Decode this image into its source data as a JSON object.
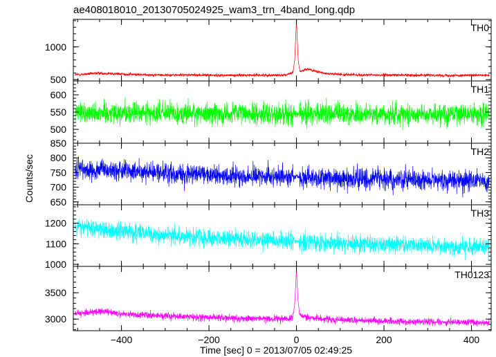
{
  "chart_data": {
    "type": "line",
    "title": "ae408018010_20130705024925_wam3_trn_4band_long.qdp",
    "xlabel": "Time [sec] 0 = 2013/07/05 02:49:25",
    "ylabel": "Counts/sec",
    "xlim": [
      -510,
      445
    ],
    "xticks": [
      -400,
      -200,
      0,
      200,
      400
    ],
    "xtick_labels": [
      "−400",
      "−200",
      "0",
      "200",
      "400"
    ],
    "grid": false,
    "legend": "none",
    "panels": [
      {
        "name": "TH0",
        "color": "#ff0000",
        "ylim": [
          480,
          1420
        ],
        "yticks": [
          500,
          1000
        ],
        "ytick_labels": [
          "500",
          "1000"
        ],
        "points": [
          [
            -505,
            575
          ],
          [
            -480,
            585
          ],
          [
            -450,
            600
          ],
          [
            -420,
            590
          ],
          [
            -400,
            585
          ],
          [
            -350,
            575
          ],
          [
            -300,
            570
          ],
          [
            -250,
            572
          ],
          [
            -200,
            568
          ],
          [
            -150,
            565
          ],
          [
            -100,
            570
          ],
          [
            -50,
            568
          ],
          [
            -20,
            575
          ],
          [
            -8,
            610
          ],
          [
            -4,
            800
          ],
          [
            -2,
            1100
          ],
          [
            0,
            1400
          ],
          [
            2,
            1100
          ],
          [
            4,
            800
          ],
          [
            8,
            620
          ],
          [
            20,
            650
          ],
          [
            30,
            660
          ],
          [
            45,
            620
          ],
          [
            80,
            585
          ],
          [
            150,
            570
          ],
          [
            250,
            570
          ],
          [
            350,
            565
          ],
          [
            440,
            565
          ]
        ],
        "noise": 15
      },
      {
        "name": "TH1",
        "color": "#00ff00",
        "ylim": [
          460,
          640
        ],
        "yticks": [
          500,
          550,
          600
        ],
        "ytick_labels": [
          "500",
          "550",
          "600"
        ],
        "points": [
          [
            -505,
            550
          ],
          [
            -400,
            548
          ],
          [
            -200,
            546
          ],
          [
            0,
            545
          ],
          [
            200,
            544
          ],
          [
            440,
            545
          ]
        ],
        "noise": 22
      },
      {
        "name": "TH2",
        "color": "#0000ff",
        "ylim": [
          640,
          850
        ],
        "yticks": [
          650,
          700,
          750,
          800,
          850
        ],
        "ytick_labels": [
          "650",
          "700",
          "750",
          "800",
          "850"
        ],
        "points": [
          [
            -505,
            760
          ],
          [
            -400,
            755
          ],
          [
            -300,
            748
          ],
          [
            -200,
            742
          ],
          [
            -100,
            738
          ],
          [
            0,
            735
          ],
          [
            100,
            730
          ],
          [
            200,
            728
          ],
          [
            300,
            725
          ],
          [
            440,
            722
          ]
        ],
        "noise": 24
      },
      {
        "name": "TH3",
        "color": "#00ffff",
        "ylim": [
          990,
          1290
        ],
        "yticks": [
          1000,
          1100,
          1200
        ],
        "ytick_labels": [
          "1000",
          "1100",
          "1200"
        ],
        "points": [
          [
            -505,
            1180
          ],
          [
            -400,
            1160
          ],
          [
            -300,
            1140
          ],
          [
            -200,
            1130
          ],
          [
            -100,
            1120
          ],
          [
            0,
            1110
          ],
          [
            100,
            1100
          ],
          [
            200,
            1095
          ],
          [
            300,
            1090
          ],
          [
            440,
            1085
          ]
        ],
        "noise": 30
      },
      {
        "name": "TH0123",
        "color": "#ff00ff",
        "ylim": [
          2780,
          4000
        ],
        "yticks": [
          3000,
          3500
        ],
        "ytick_labels": [
          "3000",
          "3500"
        ],
        "points": [
          [
            -505,
            3110
          ],
          [
            -460,
            3150
          ],
          [
            -430,
            3130
          ],
          [
            -400,
            3100
          ],
          [
            -300,
            3060
          ],
          [
            -200,
            3030
          ],
          [
            -100,
            3010
          ],
          [
            -20,
            3000
          ],
          [
            -8,
            3050
          ],
          [
            -4,
            3300
          ],
          [
            -2,
            3600
          ],
          [
            0,
            3950
          ],
          [
            2,
            3600
          ],
          [
            4,
            3300
          ],
          [
            8,
            3080
          ],
          [
            20,
            3040
          ],
          [
            80,
            2990
          ],
          [
            200,
            2960
          ],
          [
            300,
            2950
          ],
          [
            440,
            2930
          ]
        ],
        "noise": 45
      }
    ]
  }
}
